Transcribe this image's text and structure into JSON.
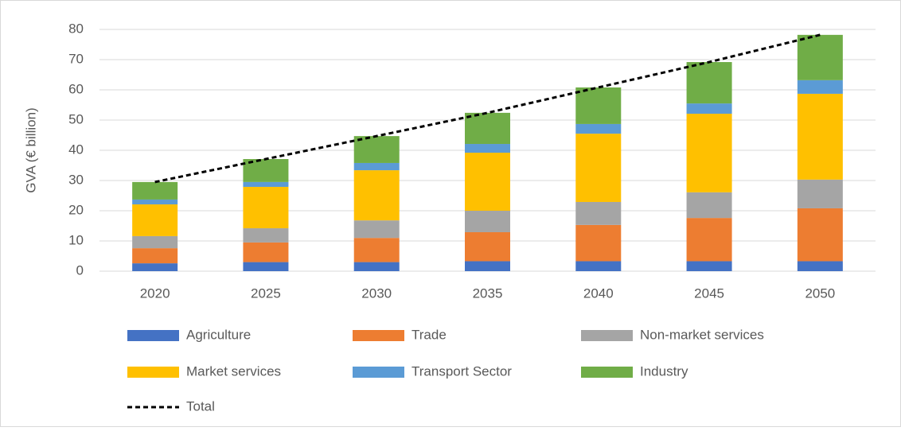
{
  "chart_data": {
    "type": "bar",
    "stacked": true,
    "y_label": "GVA (€ billion)",
    "categories": [
      "2020",
      "2025",
      "2030",
      "2035",
      "2040",
      "2045",
      "2050"
    ],
    "series": [
      {
        "name": "Agriculture",
        "color": "#4472c4",
        "values": [
          2.6,
          3.0,
          3.0,
          3.3,
          3.3,
          3.3,
          3.3
        ]
      },
      {
        "name": "Trade",
        "color": "#ed7d31",
        "values": [
          5.0,
          6.5,
          8.0,
          9.6,
          12.0,
          14.3,
          17.5
        ]
      },
      {
        "name": "Non-market services",
        "color": "#a5a5a5",
        "values": [
          4.0,
          4.7,
          5.8,
          7.1,
          7.6,
          8.5,
          9.5
        ]
      },
      {
        "name": "Market services",
        "color": "#ffc000",
        "values": [
          10.5,
          13.7,
          16.6,
          19.2,
          22.6,
          26.0,
          28.4
        ]
      },
      {
        "name": "Transport Sector",
        "color": "#5b9bd5",
        "values": [
          1.6,
          1.6,
          2.4,
          2.9,
          3.2,
          3.4,
          4.5
        ]
      },
      {
        "name": "Industry",
        "color": "#70ad47",
        "values": [
          5.8,
          7.6,
          8.9,
          10.3,
          12.1,
          13.7,
          15.0
        ]
      },
      {
        "name": "Total",
        "color": "#000000",
        "type": "line",
        "dashed": true,
        "values": [
          29.5,
          37.1,
          44.7,
          52.4,
          60.8,
          69.2,
          78.2
        ]
      }
    ],
    "ylim": [
      0,
      80
    ],
    "yticks": [
      0,
      10,
      20,
      30,
      40,
      50,
      60,
      70,
      80
    ],
    "grid": true
  }
}
